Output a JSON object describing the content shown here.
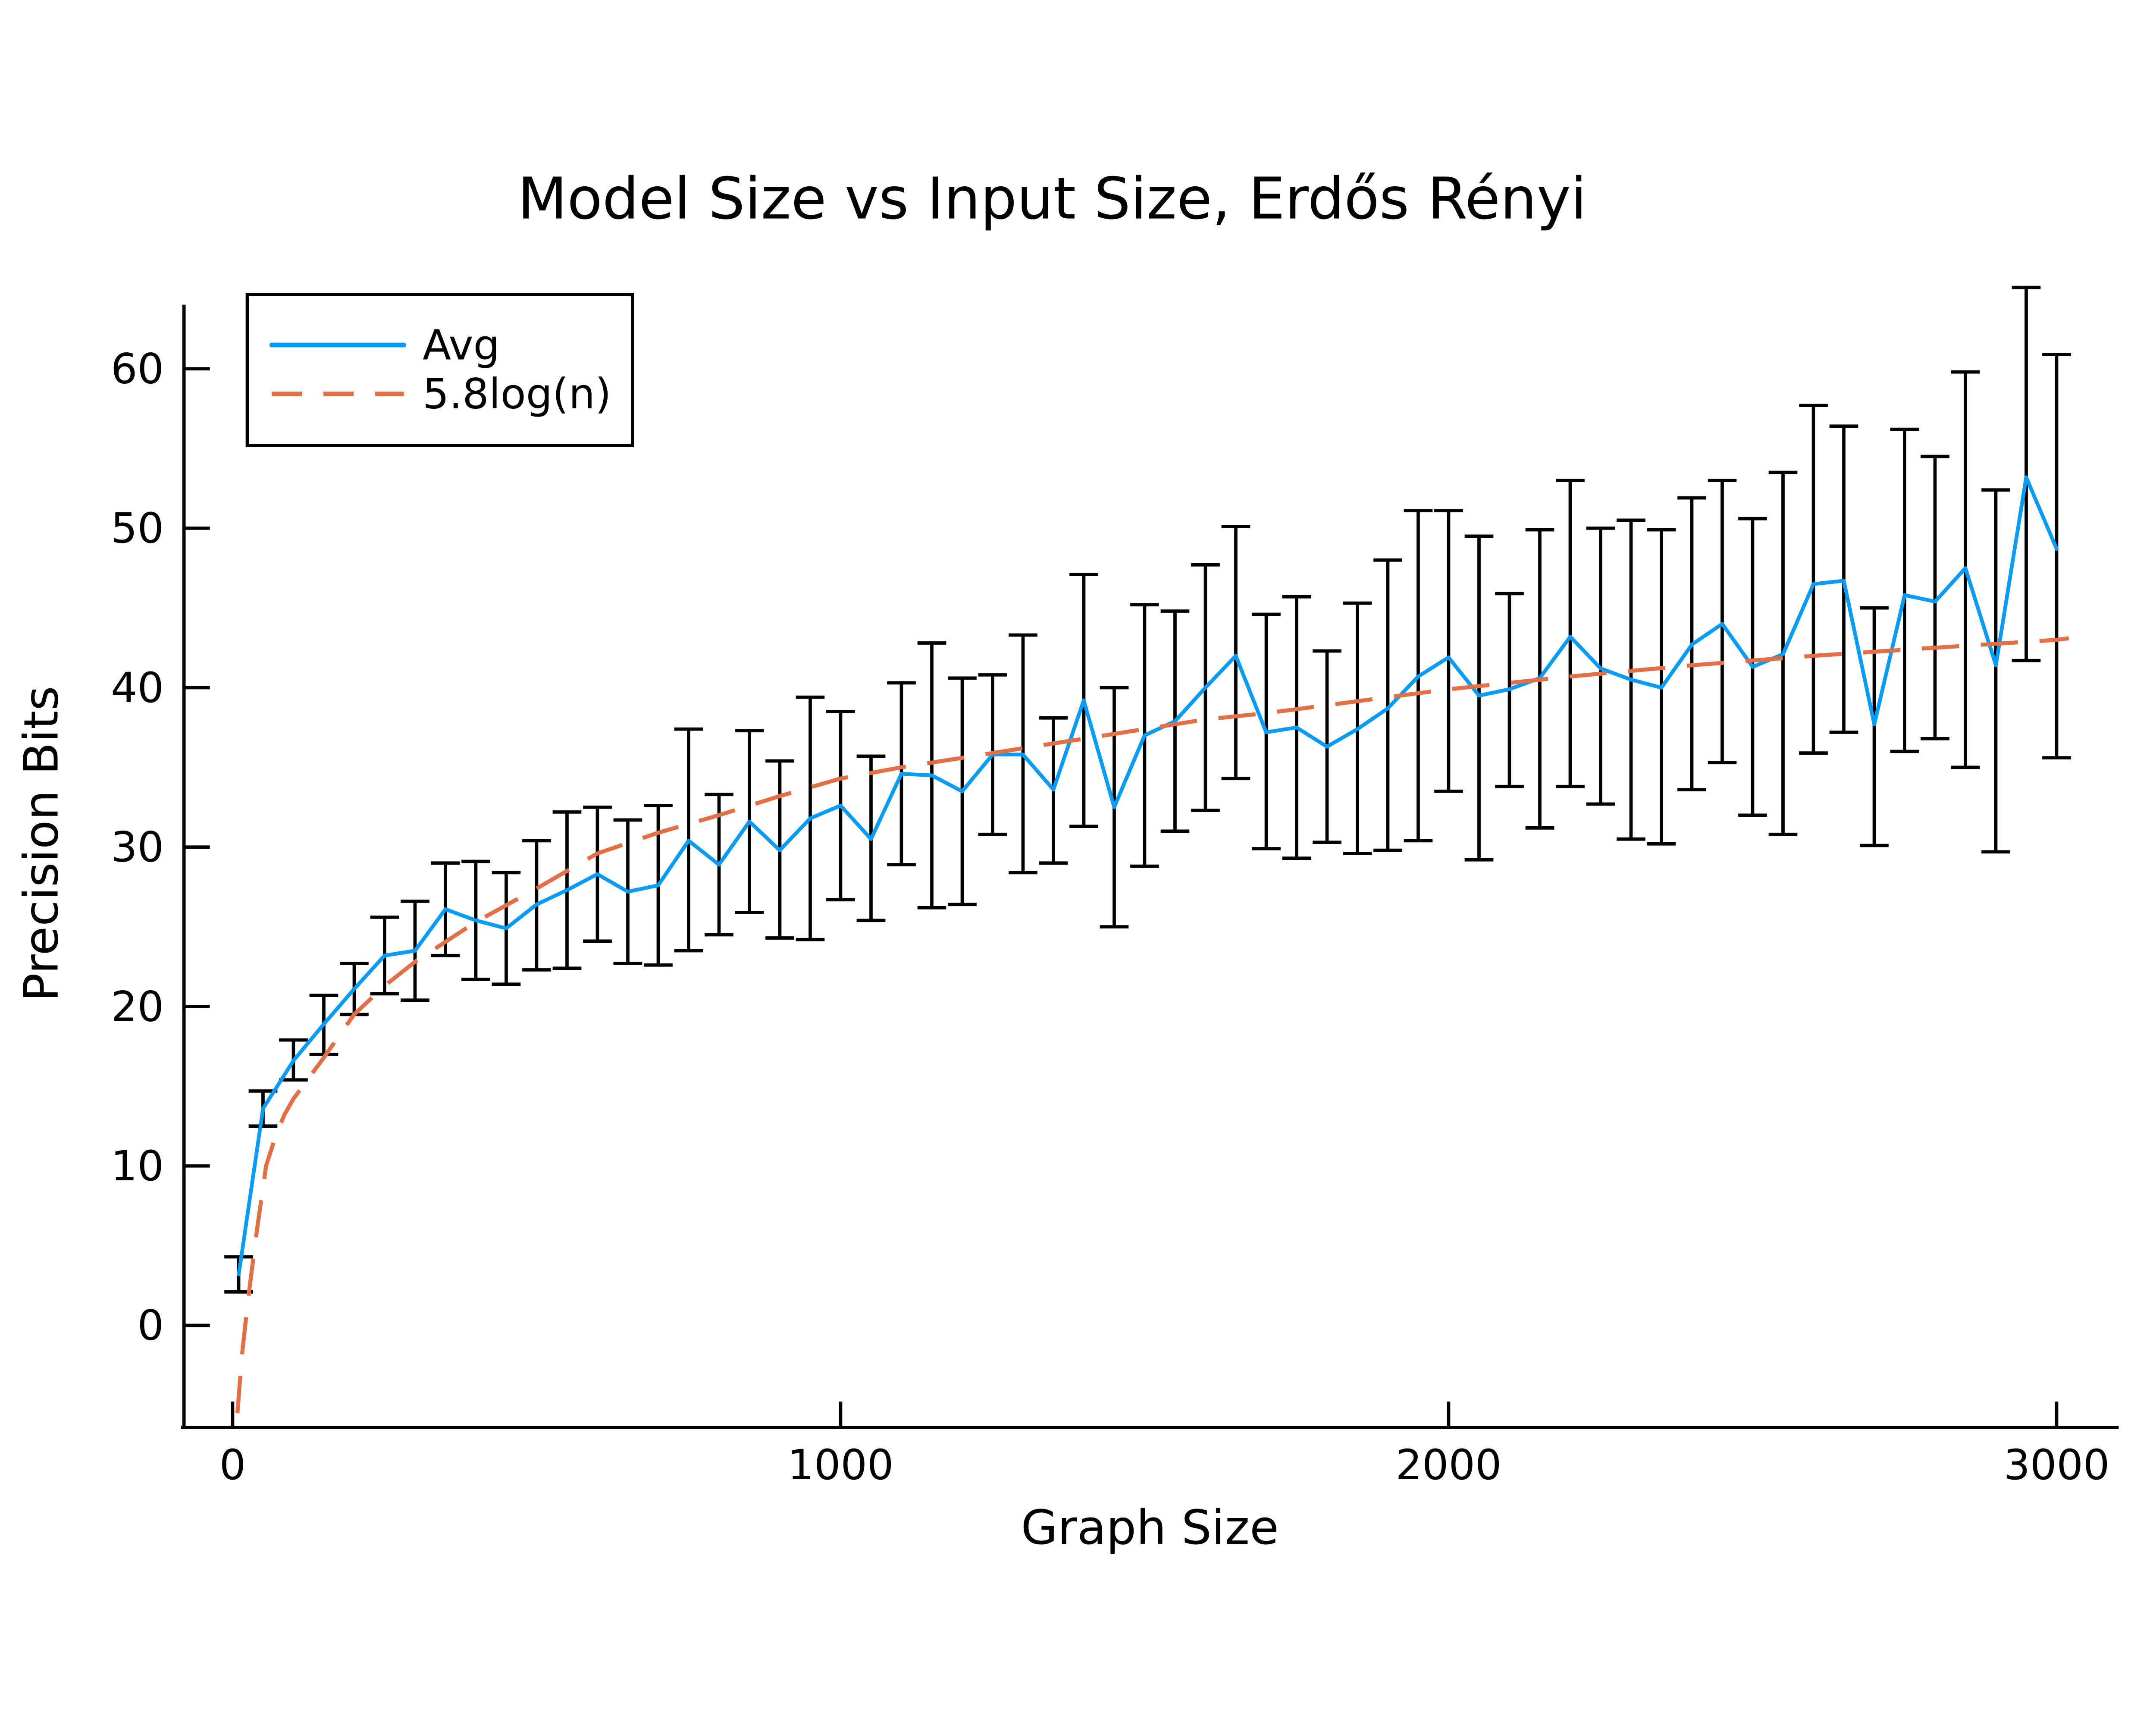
{
  "page": {
    "background": "#ffffff"
  },
  "chart_data": {
    "type": "line",
    "title": "Model Size vs Input Size, Erdős Rényi",
    "xlabel": "Graph Size",
    "ylabel": "Precision Bits",
    "xlim": [
      -80,
      3102
    ],
    "ylim": [
      -6.4,
      66.9
    ],
    "xticks": [
      0,
      1000,
      2000,
      3000
    ],
    "yticks": [
      0,
      10,
      20,
      30,
      40,
      50,
      60
    ],
    "grid": false,
    "legend_position": "top-left",
    "axis_color": "#000000",
    "background": "#ffffff",
    "series": [
      {
        "name": "Avg",
        "kind": "line-with-errorbars",
        "color": "#0a9cf5",
        "error_color": "#000000",
        "x": [
          10,
          50,
          100,
          150,
          200,
          250,
          300,
          350,
          400,
          450,
          500,
          550,
          600,
          650,
          700,
          750,
          800,
          850,
          900,
          950,
          1000,
          1050,
          1100,
          1150,
          1200,
          1250,
          1300,
          1350,
          1400,
          1450,
          1500,
          1550,
          1600,
          1650,
          1700,
          1750,
          1800,
          1850,
          1900,
          1950,
          2000,
          2050,
          2100,
          2150,
          2200,
          2250,
          2300,
          2350,
          2400,
          2450,
          2500,
          2550,
          2600,
          2650,
          2700,
          2750,
          2800,
          2850,
          2900,
          2950,
          3000
        ],
        "y": [
          3.2,
          13.6,
          16.6,
          18.9,
          21.1,
          23.2,
          23.5,
          26.1,
          25.4,
          24.9,
          26.4,
          27.3,
          28.3,
          27.2,
          27.6,
          30.4,
          28.9,
          31.6,
          29.8,
          31.8,
          32.6,
          30.5,
          34.6,
          34.5,
          33.5,
          35.8,
          35.8,
          33.6,
          39.2,
          32.5,
          37.0,
          37.9,
          40.0,
          42.0,
          37.2,
          37.5,
          36.3,
          37.4,
          38.7,
          40.7,
          41.9,
          39.5,
          39.9,
          40.6,
          43.2,
          41.2,
          40.5,
          40.0,
          42.7,
          44.0,
          41.3,
          42.1,
          46.5,
          46.7,
          37.7,
          45.8,
          45.4,
          47.5,
          41.4,
          53.2,
          48.7
        ],
        "y_lo": [
          2.1,
          12.5,
          15.4,
          17.0,
          19.5,
          20.8,
          20.4,
          23.2,
          21.7,
          21.4,
          22.3,
          22.4,
          24.1,
          22.7,
          22.6,
          23.5,
          24.5,
          25.9,
          24.3,
          24.2,
          26.7,
          25.4,
          28.9,
          26.2,
          26.4,
          30.8,
          28.4,
          29.0,
          31.3,
          25.0,
          28.8,
          31.0,
          32.3,
          34.3,
          29.9,
          29.3,
          30.3,
          29.6,
          29.8,
          30.4,
          33.5,
          29.2,
          33.8,
          31.2,
          33.8,
          32.7,
          30.5,
          30.2,
          33.6,
          35.3,
          32.0,
          30.8,
          35.9,
          37.2,
          30.1,
          36.0,
          36.8,
          35.0,
          29.7,
          41.7,
          35.6
        ],
        "y_hi": [
          4.3,
          14.7,
          17.9,
          20.7,
          22.7,
          25.6,
          26.6,
          29.0,
          29.1,
          28.4,
          30.4,
          32.2,
          32.5,
          31.7,
          32.6,
          37.4,
          33.3,
          37.3,
          35.4,
          39.4,
          38.5,
          35.7,
          40.3,
          42.8,
          40.6,
          40.8,
          43.3,
          38.1,
          47.1,
          40.0,
          45.2,
          44.8,
          47.7,
          50.1,
          44.6,
          45.7,
          42.3,
          45.3,
          48.0,
          51.1,
          51.1,
          49.5,
          45.9,
          49.9,
          53.0,
          50.0,
          50.5,
          49.9,
          51.9,
          53.0,
          50.6,
          53.5,
          57.7,
          56.4,
          45.0,
          56.2,
          54.5,
          59.8,
          52.4,
          65.1,
          60.9
        ]
      },
      {
        "name": "5.8log(n)",
        "kind": "dashed-line",
        "color": "#e36f47",
        "points": [
          [
            8,
            -5.5
          ],
          [
            15,
            -2.0
          ],
          [
            25,
            1.5
          ],
          [
            40,
            6.0
          ],
          [
            55,
            10.0
          ],
          [
            70,
            11.8
          ],
          [
            85,
            13.2
          ],
          [
            100,
            14.2
          ],
          [
            150,
            16.8
          ],
          [
            200,
            19.5
          ],
          [
            250,
            21.3
          ],
          [
            300,
            22.8
          ],
          [
            400,
            25.3
          ],
          [
            500,
            27.4
          ],
          [
            600,
            29.6
          ],
          [
            700,
            30.9
          ],
          [
            800,
            32.0
          ],
          [
            900,
            33.2
          ],
          [
            1000,
            34.3
          ],
          [
            1100,
            35.0
          ],
          [
            1200,
            35.6
          ],
          [
            1300,
            36.2
          ],
          [
            1400,
            36.8
          ],
          [
            1500,
            37.4
          ],
          [
            1600,
            38.0
          ],
          [
            1700,
            38.4
          ],
          [
            1800,
            38.9
          ],
          [
            1900,
            39.4
          ],
          [
            2000,
            39.9
          ],
          [
            2200,
            40.7
          ],
          [
            2400,
            41.4
          ],
          [
            2600,
            42.0
          ],
          [
            2800,
            42.5
          ],
          [
            3000,
            43.0
          ],
          [
            3020,
            43.1
          ]
        ]
      }
    ]
  }
}
